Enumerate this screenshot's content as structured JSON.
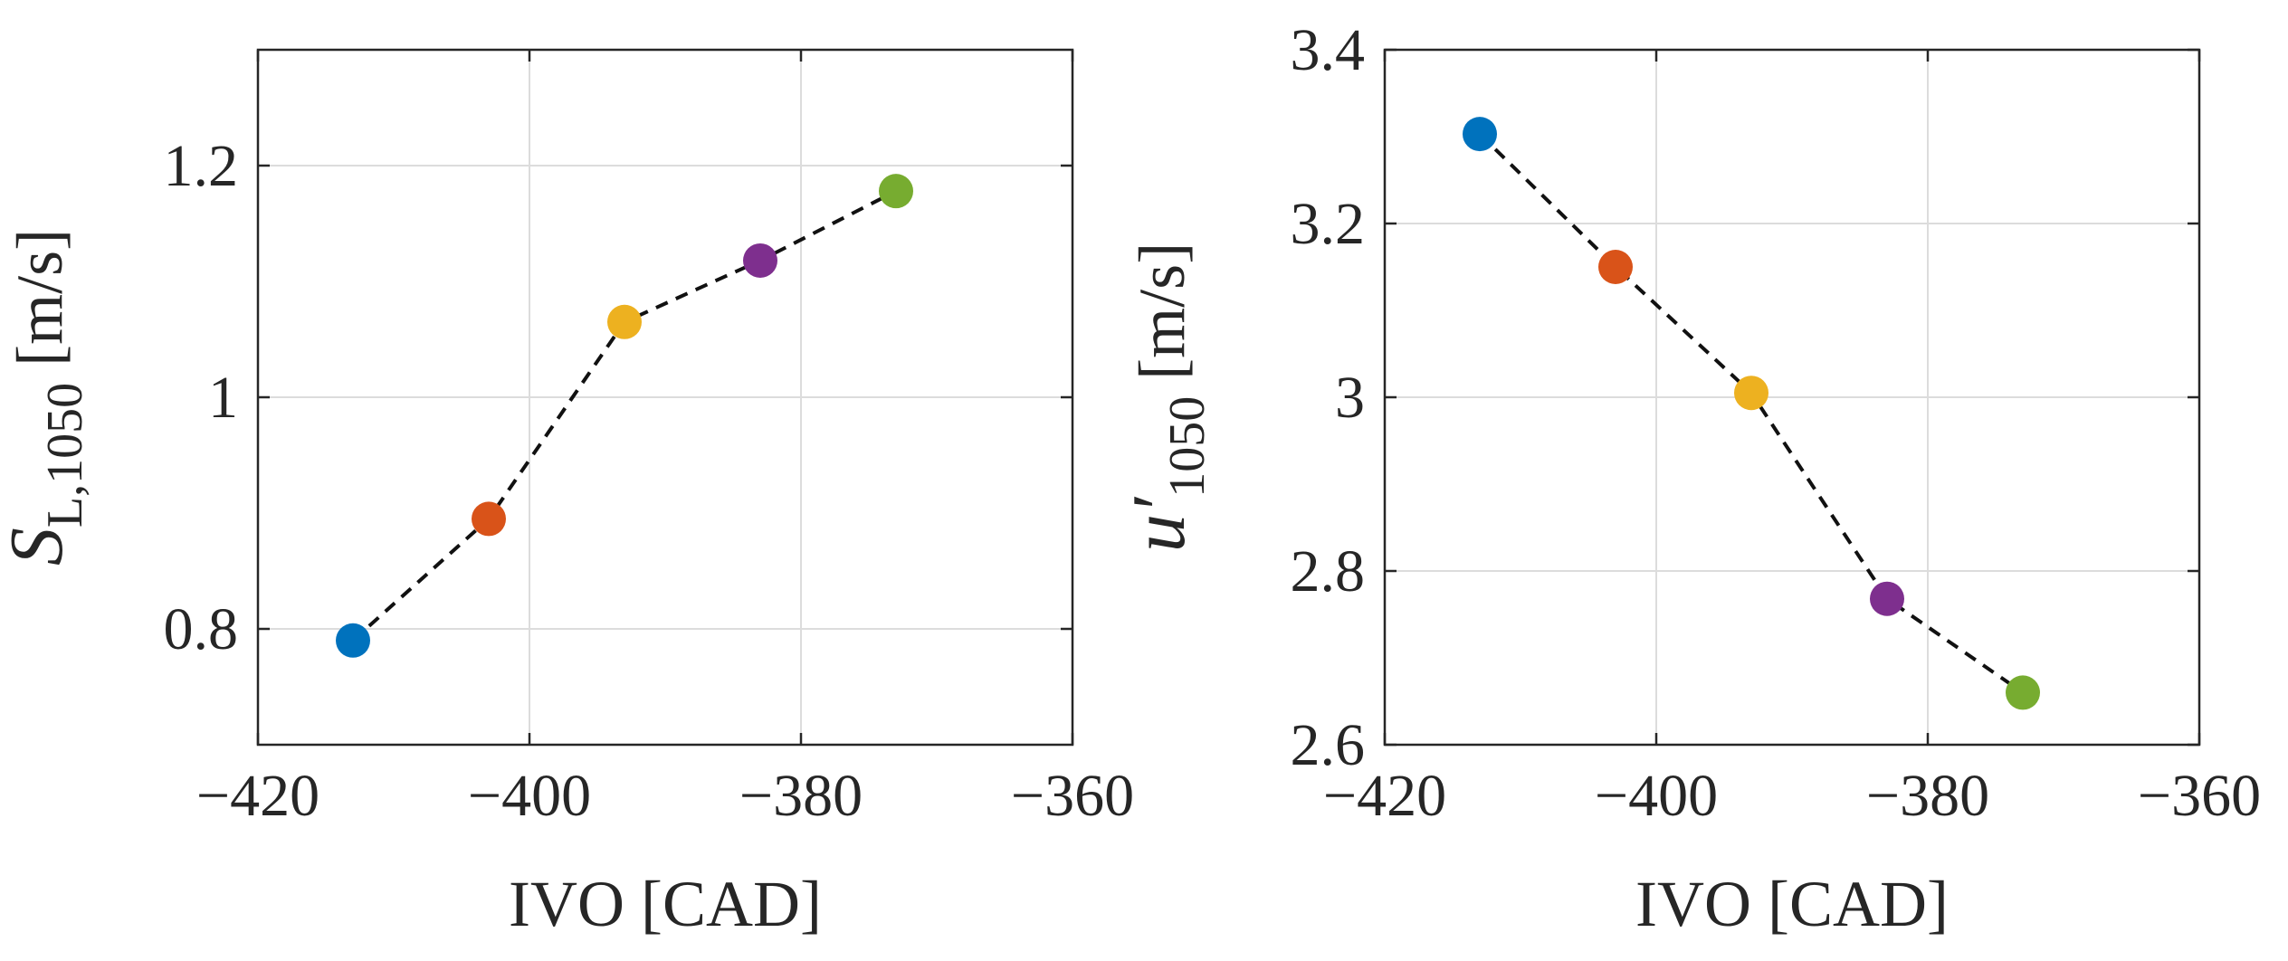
{
  "chart_data": [
    {
      "type": "scatter",
      "title": "",
      "xlabel": "IVO [CAD]",
      "ylabel": {
        "base": "S",
        "sub": "L,1050",
        "unit": " [m/s]"
      },
      "xlim": [
        -420,
        -360
      ],
      "ylim": [
        0.7,
        1.3
      ],
      "xticks": [
        -420,
        -400,
        -380,
        -360
      ],
      "xtick_labels": [
        "−420",
        "−400",
        "−380",
        "−360"
      ],
      "yticks": [
        0.8,
        1.0,
        1.2
      ],
      "ytick_labels": [
        "0.8",
        "1",
        "1.2"
      ],
      "grid": true,
      "connector": "dashed",
      "x": [
        -413,
        -403,
        -393,
        -383,
        -373
      ],
      "y": [
        0.79,
        0.895,
        1.065,
        1.118,
        1.178
      ],
      "colors": [
        "#0072BD",
        "#D95319",
        "#EDB120",
        "#7E2F8E",
        "#77AC30"
      ]
    },
    {
      "type": "scatter",
      "title": "",
      "xlabel": "IVO [CAD]",
      "ylabel": {
        "base": "u′",
        "sub": "1050",
        "unit": " [m/s]"
      },
      "xlim": [
        -420,
        -360
      ],
      "ylim": [
        2.6,
        3.4
      ],
      "xticks": [
        -420,
        -400,
        -380,
        -360
      ],
      "xtick_labels": [
        "−420",
        "−400",
        "−380",
        "−360"
      ],
      "yticks": [
        2.6,
        2.8,
        3.0,
        3.2,
        3.4
      ],
      "ytick_labels": [
        "2.6",
        "2.8",
        "3",
        "3.2",
        "3.4"
      ],
      "grid": true,
      "connector": "dashed",
      "x": [
        -413,
        -403,
        -393,
        -383,
        -373
      ],
      "y": [
        3.303,
        3.15,
        3.005,
        2.768,
        2.66
      ],
      "colors": [
        "#0072BD",
        "#D95319",
        "#EDB120",
        "#7E2F8E",
        "#77AC30"
      ]
    }
  ]
}
